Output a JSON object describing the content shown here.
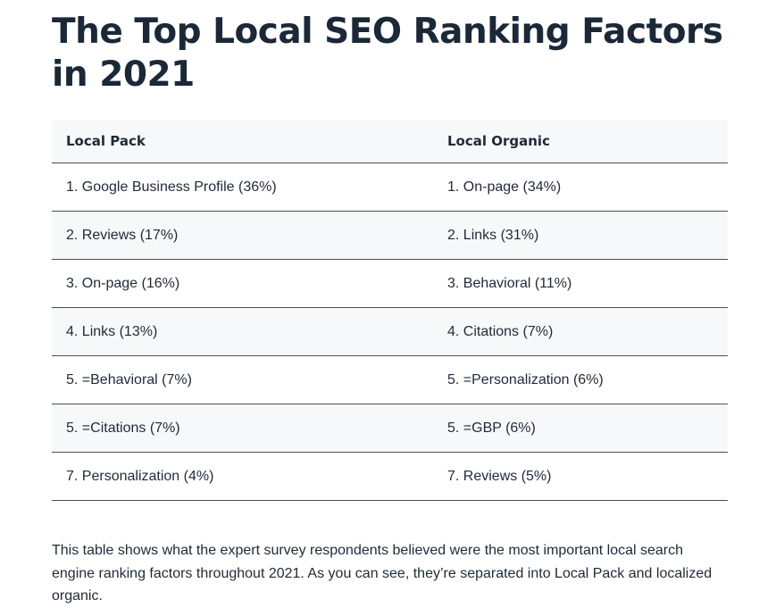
{
  "title": "The Top Local SEO Ranking Factors in 2021",
  "table": {
    "headers": [
      "Local Pack",
      "Local Organic"
    ],
    "rows": [
      [
        "1. Google Business Profile (36%)",
        "1. On-page (34%)"
      ],
      [
        "2. Reviews (17%)",
        "2. Links (31%)"
      ],
      [
        "3. On-page (16%)",
        "3. Behavioral (11%)"
      ],
      [
        "4. Links (13%)",
        "4. Citations (7%)"
      ],
      [
        "5. =Behavioral (7%)",
        "5. =Personalization (6%)"
      ],
      [
        "5. =Citations (7%)",
        "5. =GBP (6%)"
      ],
      [
        "7. Personalization (4%)",
        "7. Reviews (5%)"
      ]
    ]
  },
  "caption": "This table shows what the expert survey respondents believed were the most important local search engine ranking factors throughout 2021. As you can see, they’re separated into Local Pack and localized organic."
}
